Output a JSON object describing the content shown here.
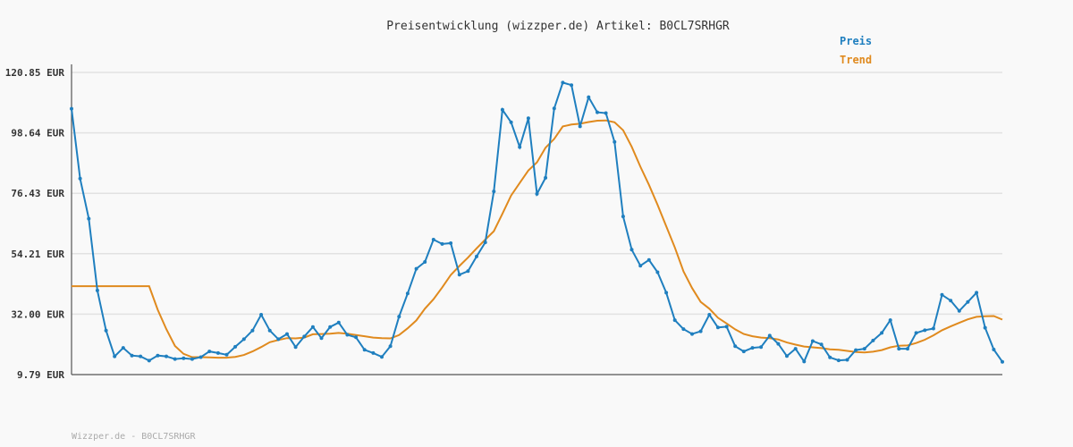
{
  "chart_data": {
    "type": "line",
    "title": "Preisentwicklung (wizzper.de) Artikel: B0CL7SRHGR",
    "footer": "Wizzper.de - B0CL7SRHGR",
    "y_ticks": [
      "120.85 EUR",
      "98.64 EUR",
      "76.43 EUR",
      "54.21 EUR",
      "32.00 EUR",
      "9.79 EUR"
    ],
    "ylim": [
      9.79,
      120.85
    ],
    "grid": true,
    "legend_position": "top-right",
    "colors": {
      "preis": "#1f7fbf",
      "trend": "#e08a1e",
      "grid": "#e2e2e2",
      "axis": "#555555"
    },
    "series": [
      {
        "name": "Preis",
        "values": [
          107.5,
          81.8,
          67.1,
          40.7,
          26.0,
          16.5,
          19.6,
          16.8,
          16.5,
          14.9,
          16.8,
          16.5,
          15.5,
          15.8,
          15.5,
          16.2,
          18.3,
          17.7,
          17.1,
          20.0,
          22.8,
          26.0,
          31.8,
          26.0,
          22.8,
          24.7,
          19.9,
          23.8,
          27.3,
          23.2,
          27.3,
          28.9,
          24.4,
          23.5,
          18.9,
          17.7,
          16.3,
          20.2,
          31.1,
          39.6,
          48.7,
          51.2,
          59.4,
          57.8,
          58.1,
          46.5,
          47.8,
          53.2,
          58.4,
          77.1,
          107.1,
          102.5,
          93.4,
          104.0,
          76.2,
          82.1,
          107.6,
          117.1,
          116.2,
          101.0,
          111.7,
          106.2,
          105.9,
          95.3,
          67.9,
          55.7,
          49.8,
          51.9,
          47.4,
          39.9,
          29.8,
          26.5,
          24.7,
          25.7,
          31.8,
          27.1,
          27.4,
          20.2,
          18.3,
          19.6,
          19.9,
          24.1,
          21.1,
          16.6,
          19.3,
          14.6,
          22.1,
          20.9,
          16.1,
          15.0,
          15.2,
          18.8,
          19.3,
          22.3,
          25.1,
          29.8,
          19.3,
          19.3,
          25.1,
          26.1,
          26.7,
          39.1,
          37.0,
          33.2,
          36.5,
          39.9,
          27.0,
          19.0,
          14.5
        ]
      },
      {
        "name": "Trend",
        "values": [
          42.3,
          42.3,
          42.3,
          42.3,
          42.3,
          42.3,
          42.3,
          42.3,
          42.3,
          42.3,
          33.6,
          26.5,
          20.3,
          17.4,
          16.2,
          16.2,
          16.1,
          16.0,
          16.0,
          16.3,
          17.0,
          18.3,
          19.9,
          21.7,
          22.5,
          23.2,
          23.1,
          23.4,
          24.6,
          24.7,
          24.8,
          25.1,
          24.8,
          24.3,
          23.9,
          23.4,
          23.2,
          23.1,
          24.3,
          26.8,
          29.7,
          34.0,
          37.5,
          41.8,
          46.4,
          49.7,
          52.8,
          56.2,
          59.4,
          62.5,
          68.9,
          75.6,
          80.2,
          84.8,
          87.8,
          93.2,
          96.4,
          101.0,
          101.7,
          102.0,
          102.6,
          103.1,
          103.2,
          102.5,
          99.6,
          93.5,
          86.2,
          79.5,
          72.2,
          64.3,
          56.5,
          47.7,
          41.6,
          36.5,
          34.0,
          30.7,
          28.6,
          26.4,
          24.7,
          23.9,
          23.4,
          23.2,
          22.7,
          21.6,
          20.8,
          20.1,
          19.8,
          19.5,
          19.1,
          18.9,
          18.5,
          18.1,
          17.9,
          18.2,
          18.8,
          19.8,
          20.4,
          20.5,
          21.4,
          22.6,
          24.2,
          26.1,
          27.5,
          28.8,
          30.1,
          31.0,
          31.2,
          31.3,
          30.0
        ]
      }
    ]
  }
}
